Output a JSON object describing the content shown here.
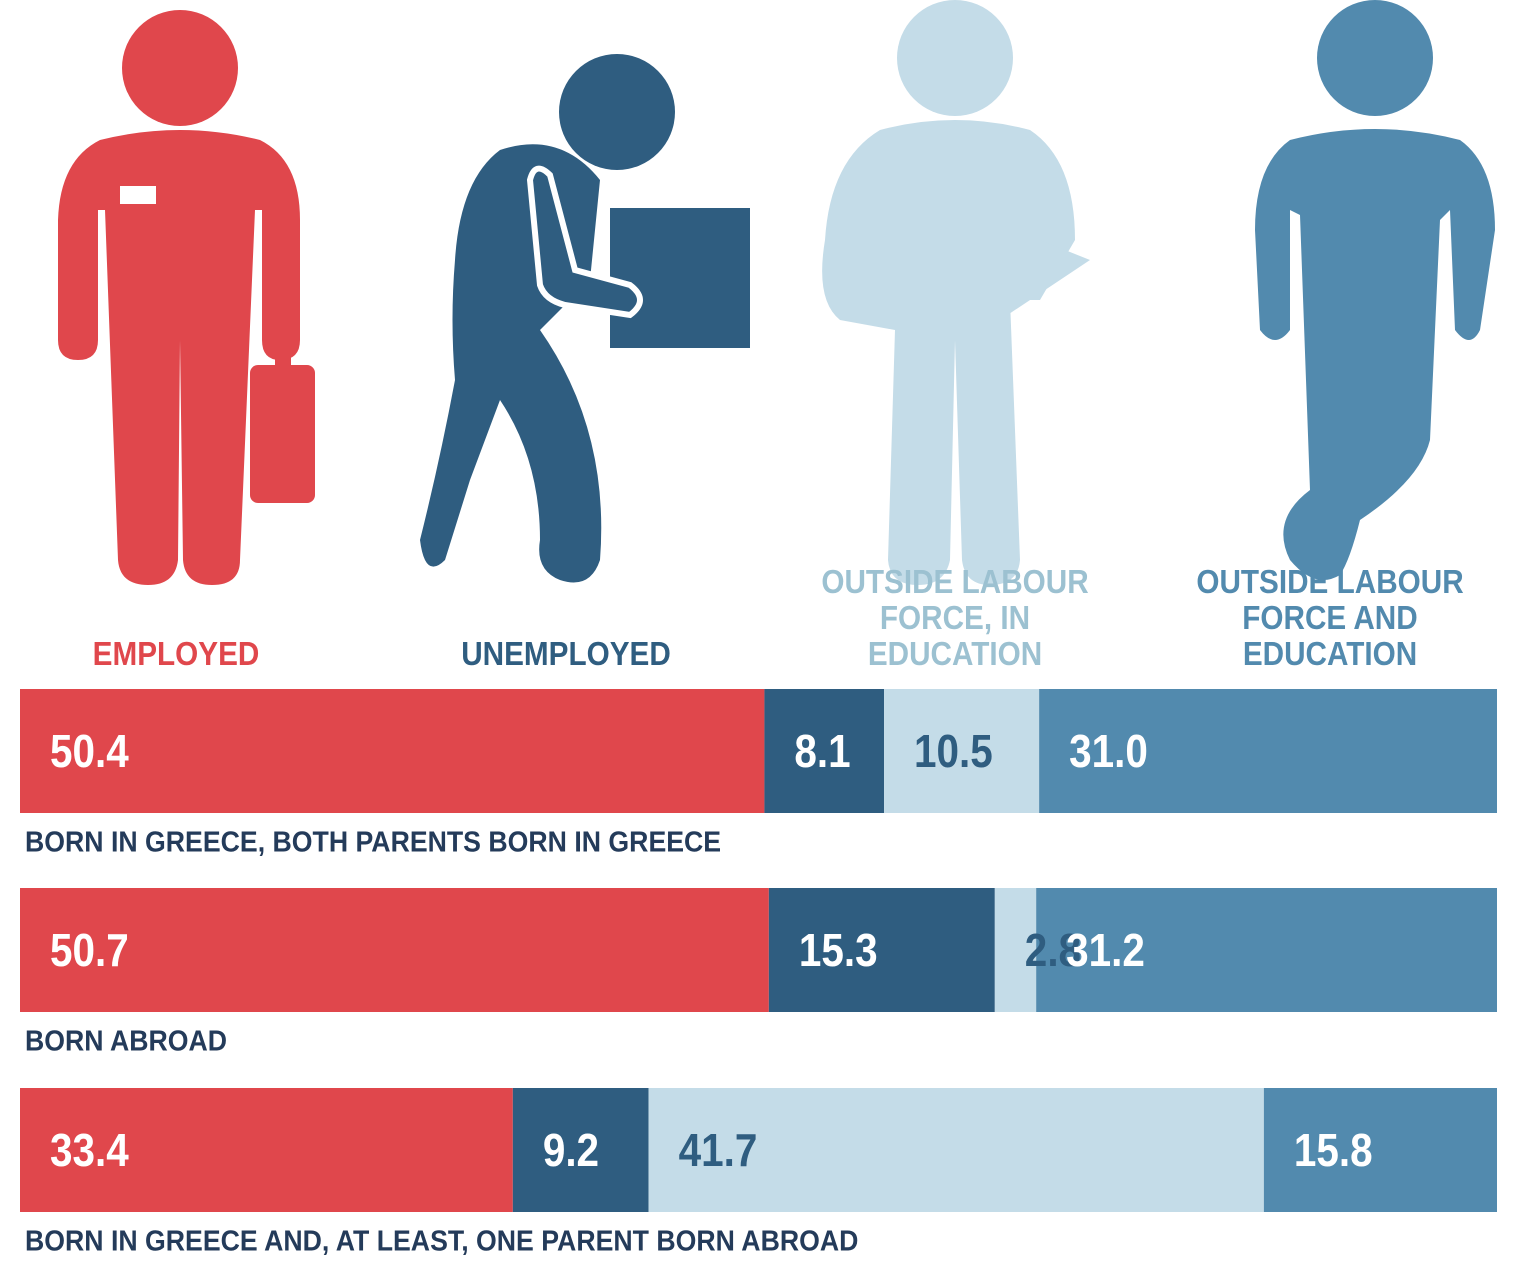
{
  "chart_data": {
    "type": "stacked-barh",
    "categories": [
      "BORN IN GREECE, BOTH PARENTS BORN IN GREECE",
      "BORN ABROAD",
      "BORN IN GREECE AND, AT LEAST, ONE PARENT BORN ABROAD"
    ],
    "series": [
      {
        "name": "EMPLOYED",
        "color": "#e0474c",
        "values": [
          50.4,
          50.7,
          33.4
        ],
        "value_labels": [
          "50.4",
          "50.7",
          "33.4"
        ]
      },
      {
        "name": "UNEMPLOYED",
        "color": "#2f5d80",
        "values": [
          8.1,
          15.3,
          9.2
        ],
        "value_labels": [
          "8.1",
          "15.3",
          "9.2"
        ]
      },
      {
        "name": "OUTSIDE LABOUR FORCE, IN EDUCATION",
        "color": "#c4dce8",
        "values": [
          10.5,
          2.8,
          41.7
        ],
        "value_labels": [
          "10.5",
          "2.8",
          "41.7"
        ]
      },
      {
        "name": "OUTSIDE LABOUR FORCE AND EDUCATION",
        "color": "#528aae",
        "values": [
          31.0,
          31.2,
          15.8
        ],
        "value_labels": [
          "31.0",
          "31.2",
          "15.8"
        ]
      }
    ]
  }
}
